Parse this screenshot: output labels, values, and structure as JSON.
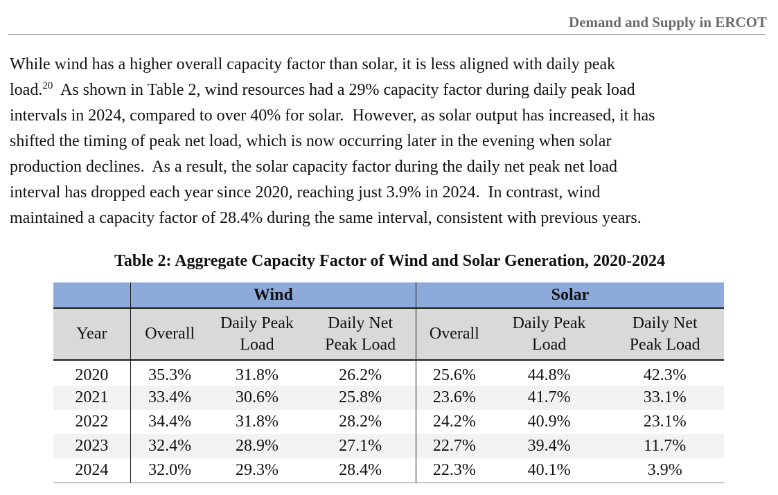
{
  "running_header": "Demand and Supply in ERCOT",
  "paragraph": {
    "line1": "While wind has a higher overall capacity factor than solar, it is less aligned with daily peak",
    "line2_before_footnote": "load.",
    "footnote_ref": "20",
    "line2_after_footnote": "  As shown in Table 2, wind resources had a 29% capacity factor during daily peak load",
    "line3": "intervals in 2024, compared to over 40% for solar.  However, as solar output has increased, it has",
    "line4": "shifted the timing of peak net load, which is now occurring later in the evening when solar",
    "line5": "production declines.  As a result, the solar capacity factor during the daily net peak net load",
    "line6": "interval has dropped each year since 2020, reaching just 3.9% in 2024.  In contrast, wind",
    "line7": "maintained a capacity factor of 28.4% during the same interval, consistent with previous years."
  },
  "table": {
    "caption": "Table 2: Aggregate Capacity Factor of Wind and Solar Generation, 2020-2024",
    "groups": {
      "wind": "Wind",
      "solar": "Solar"
    },
    "columns": {
      "year": "Year",
      "wind_overall": "Overall",
      "wind_daily_peak_l1": "Daily Peak",
      "wind_daily_peak_l2": "Load",
      "wind_daily_net_l1": "Daily Net",
      "wind_daily_net_l2": "Peak Load",
      "solar_overall": "Overall",
      "solar_daily_peak_l1": "Daily Peak",
      "solar_daily_peak_l2": "Load",
      "solar_daily_net_l1": "Daily Net",
      "solar_daily_net_l2": "Peak Load"
    },
    "rows": [
      {
        "year": "2020",
        "wind_overall": "35.3%",
        "wind_peak": "31.8%",
        "wind_net": "26.2%",
        "solar_overall": "25.6%",
        "solar_peak": "44.8%",
        "solar_net": "42.3%"
      },
      {
        "year": "2021",
        "wind_overall": "33.4%",
        "wind_peak": "30.6%",
        "wind_net": "25.8%",
        "solar_overall": "23.6%",
        "solar_peak": "41.7%",
        "solar_net": "33.1%"
      },
      {
        "year": "2022",
        "wind_overall": "34.4%",
        "wind_peak": "31.8%",
        "wind_net": "28.2%",
        "solar_overall": "24.2%",
        "solar_peak": "40.9%",
        "solar_net": "23.1%"
      },
      {
        "year": "2023",
        "wind_overall": "32.4%",
        "wind_peak": "28.9%",
        "wind_net": "27.1%",
        "solar_overall": "22.7%",
        "solar_peak": "39.4%",
        "solar_net": "11.7%"
      },
      {
        "year": "2024",
        "wind_overall": "32.0%",
        "wind_peak": "29.3%",
        "wind_net": "28.4%",
        "solar_overall": "22.3%",
        "solar_peak": "40.1%",
        "solar_net": "3.9%"
      }
    ]
  },
  "colors": {
    "group_header_bg": "#8eaadb",
    "column_header_bg": "#d9d9d9",
    "alt_row_bg": "#f2f2f2",
    "running_header_text": "#6b6b6b"
  }
}
